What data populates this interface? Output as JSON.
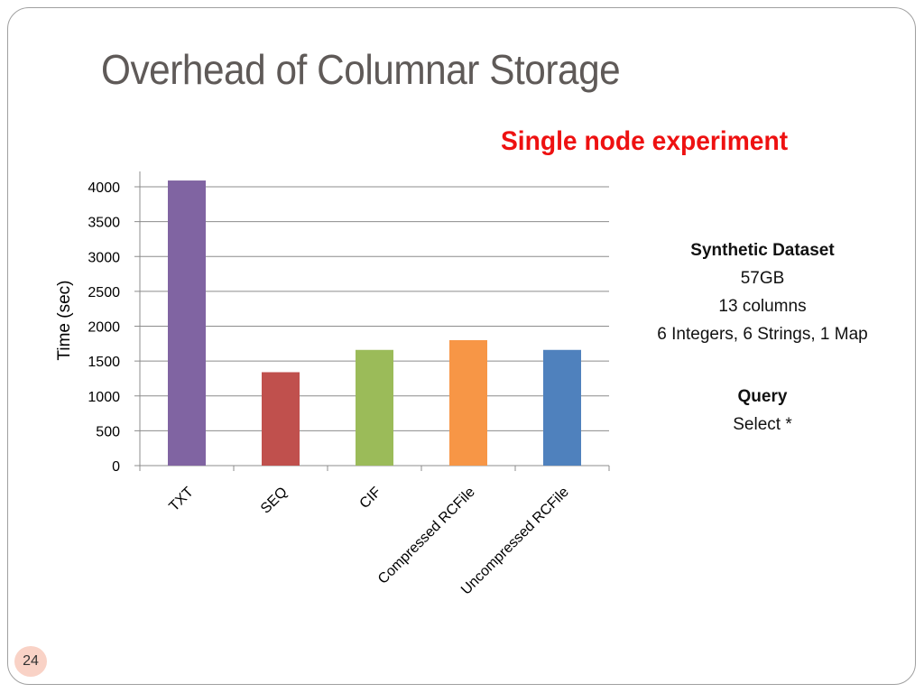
{
  "slide": {
    "title": "Overhead of Columnar Storage",
    "subtitle": "Single node experiment",
    "page_number": "24",
    "subtitle_color": "#ee1111",
    "title_color": "#5f5a58"
  },
  "dataset_info": {
    "heading": "Synthetic Dataset",
    "size": "57GB",
    "columns": "13 columns",
    "types": "6 Integers, 6 Strings, 1 Map"
  },
  "query_info": {
    "heading": "Query",
    "text": "Select *"
  },
  "chart_data": {
    "type": "bar",
    "categories": [
      "TXT",
      "SEQ",
      "CIF",
      "Compressed RCFile",
      "Uncompressed RCFile"
    ],
    "values": [
      4090,
      1340,
      1660,
      1800,
      1660
    ],
    "colors": [
      "#8064a2",
      "#c0504d",
      "#9bbb59",
      "#f79646",
      "#4f81bd"
    ],
    "ylabel": "Time (sec)",
    "xlabel": "",
    "ylim": [
      0,
      4000
    ],
    "yticks": [
      0,
      500,
      1000,
      1500,
      2000,
      2500,
      3000,
      3500,
      4000
    ],
    "grid": true
  }
}
